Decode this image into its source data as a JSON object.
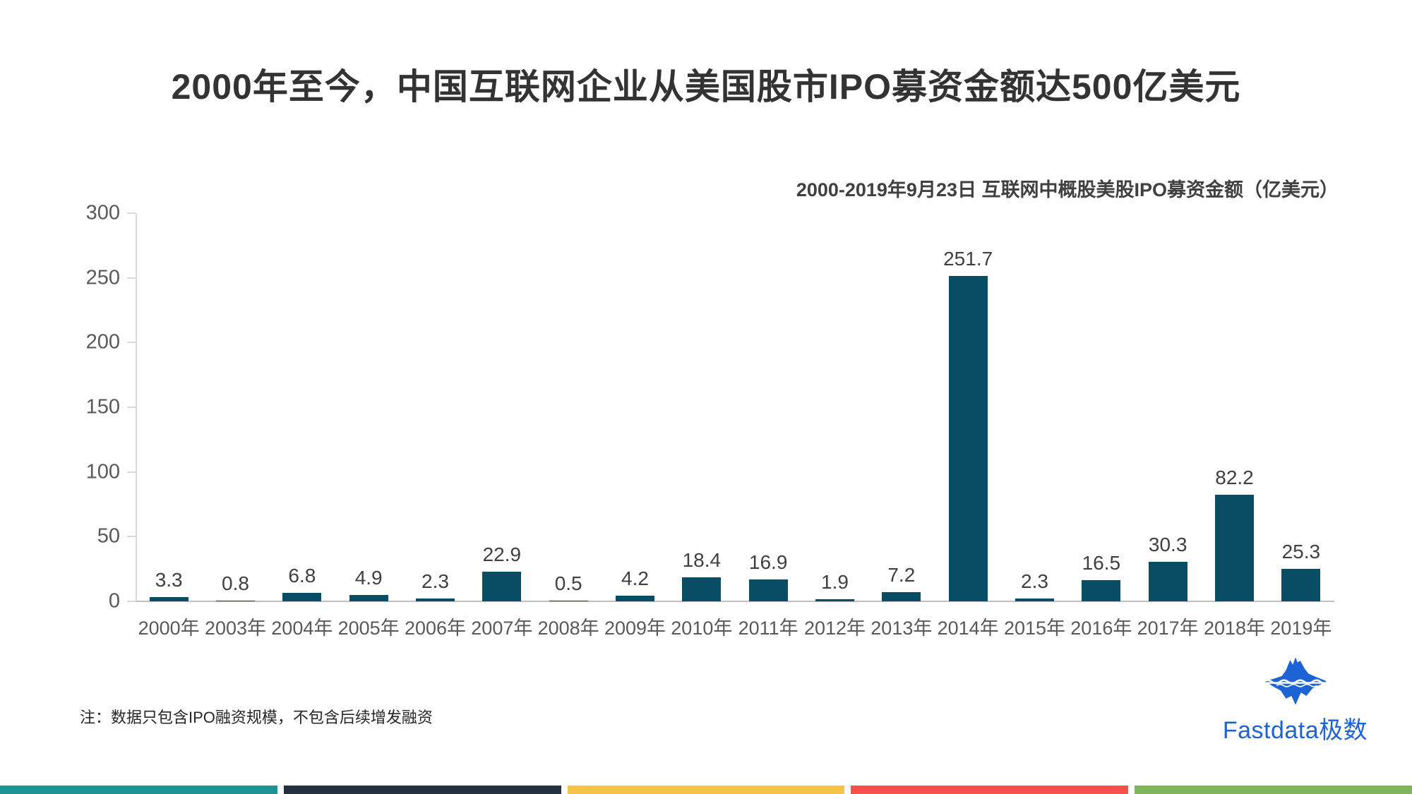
{
  "title": "2000年至今，中国互联网企业从美国股市IPO募资金额达500亿美元",
  "note": "注：数据只包含IPO融资规模，不包含后续增发融资",
  "brand": {
    "name": "Fastdata极数",
    "color": "#1e63d6",
    "icon": "iceberg-icon"
  },
  "colors": {
    "bar": "#084d64",
    "title_text": "#333333",
    "subtitle_text": "#404040",
    "axis_label_text": "#595959",
    "value_label_text": "#404040",
    "axis_line": "#d9d9d9",
    "baseline": "#bfbfbf",
    "brand_blue": "#1e63d6"
  },
  "footer_stripes": [
    "#1f9393",
    "#233140",
    "#f5c24b",
    "#f5514b",
    "#80b55b"
  ],
  "chart_data": {
    "type": "bar",
    "title": "2000-2019年9月23日 互联网中概股美股IPO募资金额（亿美元）",
    "categories": [
      "2000年",
      "2003年",
      "2004年",
      "2005年",
      "2006年",
      "2007年",
      "2008年",
      "2009年",
      "2010年",
      "2011年",
      "2012年",
      "2013年",
      "2014年",
      "2015年",
      "2016年",
      "2017年",
      "2018年",
      "2019年"
    ],
    "values": [
      3.3,
      0.8,
      6.8,
      4.9,
      2.3,
      22.9,
      0.5,
      4.2,
      18.4,
      16.9,
      1.9,
      7.2,
      251.7,
      2.3,
      16.5,
      30.3,
      82.2,
      25.3
    ],
    "xlabel": "",
    "ylabel": "",
    "ylim": [
      0,
      300
    ],
    "yticks": [
      0,
      50,
      100,
      150,
      200,
      250,
      300
    ],
    "grid": false,
    "legend_position": "none",
    "value_labels": true,
    "bar_color": "#084d64"
  }
}
